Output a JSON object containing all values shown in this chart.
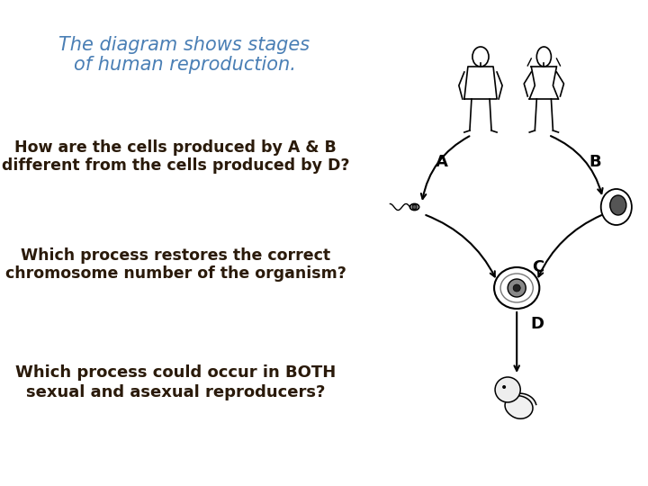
{
  "title_line1": "The diagram shows stages",
  "title_line2": "of human reproduction.",
  "title_color": "#4A7FB5",
  "q1_line1": "How are the cells produced by A & B",
  "q1_line2": "different from the cells produced by D?",
  "q2_line1": "Which process restores the correct",
  "q2_line2": "chromosome number of the organism?",
  "q3_line1": "Which process could occur in BOTH",
  "q3_line2": "sexual and asexual reproducers?",
  "text_color": "#2a1a0a",
  "bg_color": "#ffffff",
  "label_A": "A",
  "label_B": "B",
  "label_C": "C",
  "label_D": "D",
  "title_fontsize": 15,
  "q_fontsize": 12.5
}
